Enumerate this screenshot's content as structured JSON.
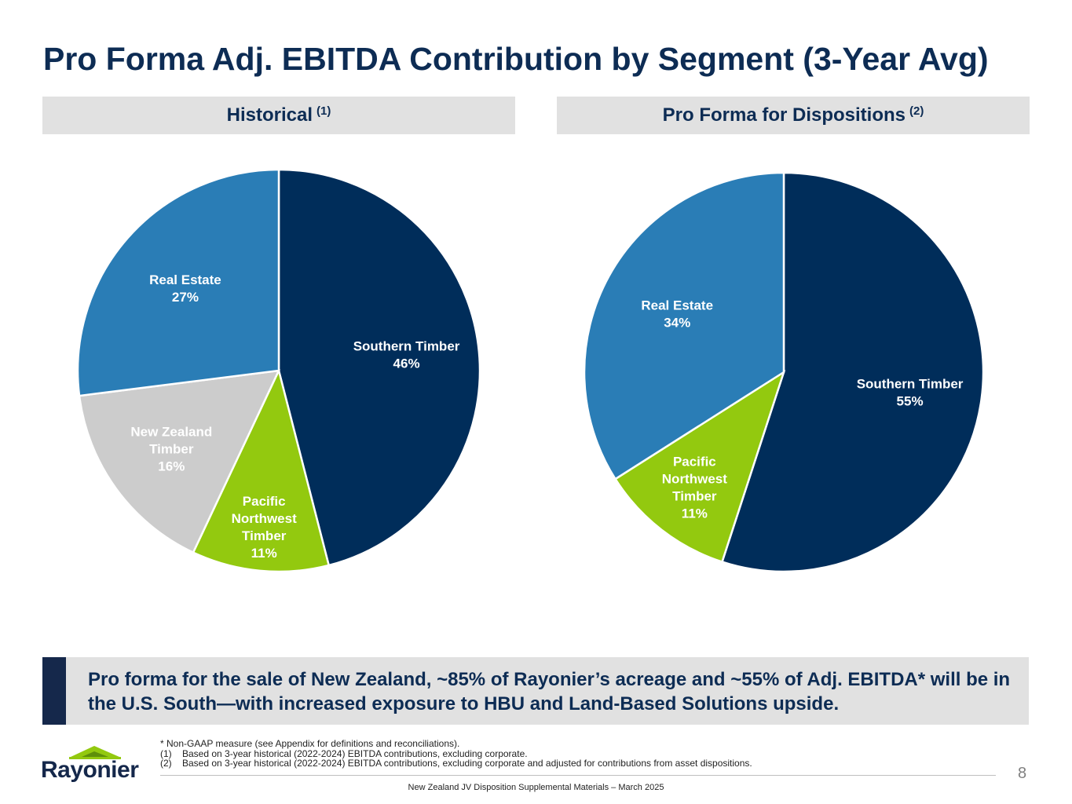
{
  "slide": {
    "title": "Pro Forma Adj. EBITDA Contribution by Segment (3-Year Avg)",
    "page_number": "8",
    "footer": "New Zealand JV Disposition Supplemental Materials – March 2025",
    "logo_text": "Rayonier",
    "callout": "Pro forma for the sale of New Zealand, ~85% of Rayonier’s acreage and ~55% of Adj. EBITDA* will be in the U.S. South—with increased exposure to HBU and Land-Based Solutions upside.",
    "footnotes": {
      "non_gaap": "* Non-GAAP measure (see Appendix for definitions and reconciliations).",
      "items": [
        {
          "num": "(1)",
          "text": "Based on 3-year historical (2022-2024) EBITDA contributions, excluding corporate."
        },
        {
          "num": "(2)",
          "text": "Based on 3-year historical (2022-2024) EBITDA contributions, excluding corporate and adjusted for contributions from asset dispositions."
        }
      ]
    }
  },
  "colors": {
    "southern_timber": "#002d5a",
    "pacific_northwest": "#93c90f",
    "new_zealand": "#cccccc",
    "real_estate": "#2a7db6",
    "title": "#0d2c54"
  },
  "chart_data": [
    {
      "type": "pie",
      "title": "Historical",
      "title_note": "(1)",
      "slices": [
        {
          "label": "Southern Timber",
          "label_lines": [
            "Southern Timber"
          ],
          "pct_label": "46%",
          "value": 46,
          "color": "#002d5a"
        },
        {
          "label": "Pacific Northwest Timber",
          "label_lines": [
            "Pacific",
            "Northwest",
            "Timber"
          ],
          "pct_label": "11%",
          "value": 11,
          "color": "#93c90f"
        },
        {
          "label": "New Zealand Timber",
          "label_lines": [
            "New Zealand",
            "Timber"
          ],
          "pct_label": "16%",
          "value": 16,
          "color": "#cccccc"
        },
        {
          "label": "Real Estate",
          "label_lines": [
            "Real Estate"
          ],
          "pct_label": "27%",
          "value": 27,
          "color": "#2a7db6"
        }
      ]
    },
    {
      "type": "pie",
      "title": "Pro Forma for Dispositions",
      "title_note": "(2)",
      "slices": [
        {
          "label": "Southern Timber",
          "label_lines": [
            "Southern Timber"
          ],
          "pct_label": "55%",
          "value": 55,
          "color": "#002d5a"
        },
        {
          "label": "Pacific Northwest Timber",
          "label_lines": [
            "Pacific",
            "Northwest",
            "Timber"
          ],
          "pct_label": "11%",
          "value": 11,
          "color": "#93c90f"
        },
        {
          "label": "Real Estate",
          "label_lines": [
            "Real Estate"
          ],
          "pct_label": "34%",
          "value": 34,
          "color": "#2a7db6"
        }
      ]
    }
  ]
}
